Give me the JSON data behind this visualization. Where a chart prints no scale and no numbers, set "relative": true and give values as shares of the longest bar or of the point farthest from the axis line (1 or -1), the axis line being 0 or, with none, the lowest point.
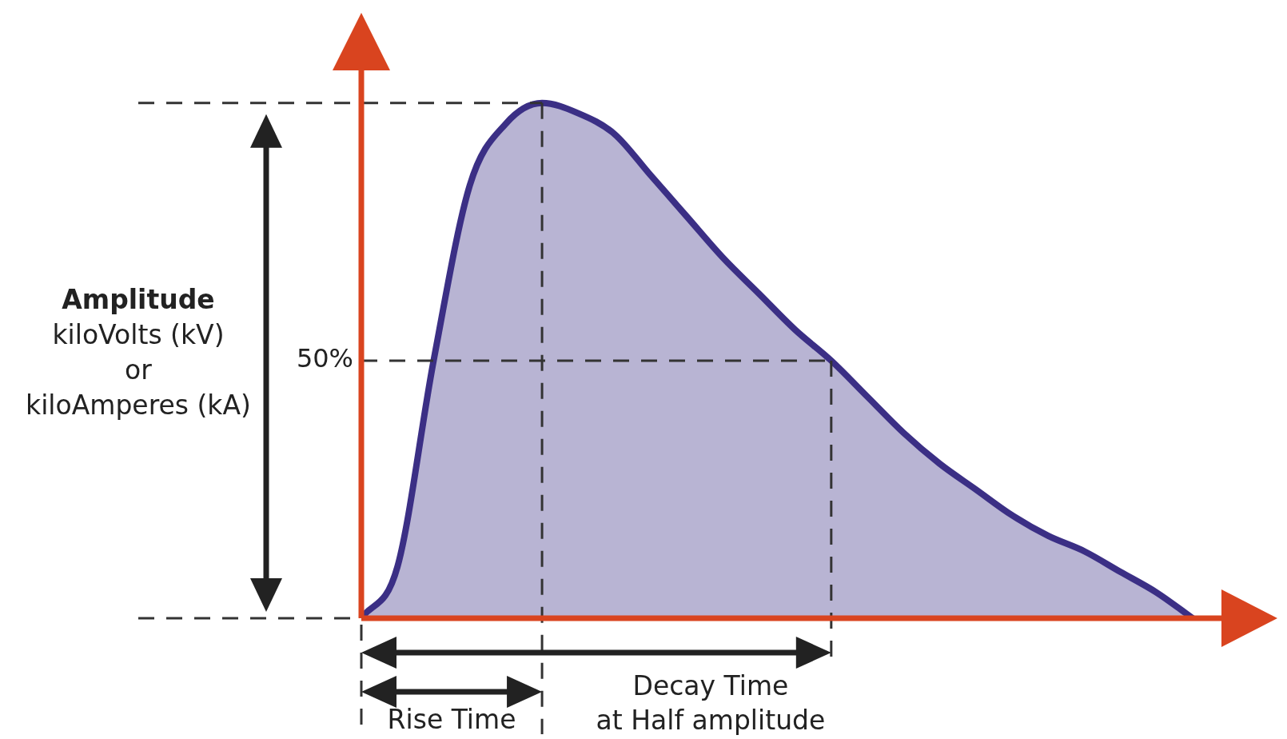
{
  "chart_data": {
    "type": "area",
    "relative": true,
    "tick_labels": false,
    "legend": false,
    "ylabel": "Amplitude\nkiloVolts (kV)\nor\nkiloAmperes (kA)",
    "categories": [
      null,
      null,
      null,
      null,
      null,
      null,
      null,
      null,
      null,
      null,
      null,
      null,
      null,
      null,
      null,
      null,
      null,
      null,
      null,
      null,
      null,
      null,
      null,
      null
    ],
    "series": [
      {
        "color": "#3b2f85",
        "values": [
          0,
          0.1,
          0.5,
          0.84,
          0.96,
          1,
          0.98,
          0.94,
          0.86,
          0.78,
          0.7,
          0.63,
          0.56,
          0.5,
          0.43,
          0.36,
          0.3,
          0.25,
          0.2,
          0.16,
          0.13,
          0.09,
          0.05,
          0
        ]
      }
    ],
    "ref_lines": [
      {
        "axis": "y",
        "value": 1,
        "label": null
      },
      {
        "axis": "y",
        "value": 0.5,
        "label": "50%"
      }
    ],
    "annotations": [
      "Rise Time",
      "Decay Time\nat Half amplitude"
    ]
  }
}
